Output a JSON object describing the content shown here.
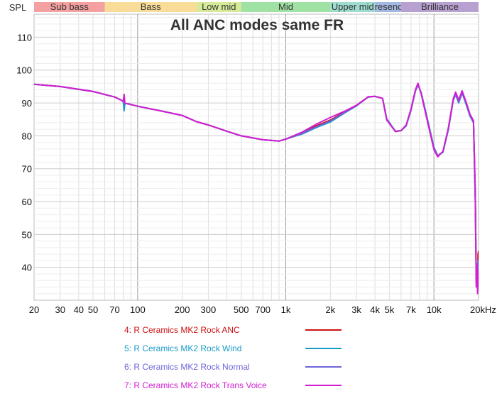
{
  "chart_data": {
    "type": "line",
    "title": "All ANC modes same FR",
    "ylabel": "SPL",
    "xlabel": "",
    "x_scale": "log",
    "xlim": [
      20,
      20000
    ],
    "ylim": [
      30,
      117
    ],
    "grid": true,
    "legend_position": "bottom",
    "x_tick_labels": [
      {
        "value": 20,
        "label": "20"
      },
      {
        "value": 30,
        "label": "30"
      },
      {
        "value": 40,
        "label": "40"
      },
      {
        "value": 50,
        "label": "50"
      },
      {
        "value": 70,
        "label": "70"
      },
      {
        "value": 100,
        "label": "100"
      },
      {
        "value": 200,
        "label": "200"
      },
      {
        "value": 300,
        "label": "300"
      },
      {
        "value": 500,
        "label": "500"
      },
      {
        "value": 700,
        "label": "700"
      },
      {
        "value": 1000,
        "label": "1k"
      },
      {
        "value": 2000,
        "label": "2k"
      },
      {
        "value": 3000,
        "label": "3k"
      },
      {
        "value": 4000,
        "label": "4k"
      },
      {
        "value": 5000,
        "label": "5k"
      },
      {
        "value": 7000,
        "label": "7k"
      },
      {
        "value": 10000,
        "label": "10k"
      },
      {
        "value": 20000,
        "label": "20kHz"
      }
    ],
    "y_tick_labels": [
      {
        "value": 40,
        "label": "40"
      },
      {
        "value": 50,
        "label": "50"
      },
      {
        "value": 60,
        "label": "60"
      },
      {
        "value": 70,
        "label": "70"
      },
      {
        "value": 80,
        "label": "80"
      },
      {
        "value": 90,
        "label": "90"
      },
      {
        "value": 100,
        "label": "100"
      },
      {
        "value": 110,
        "label": "110"
      }
    ],
    "bands": [
      {
        "label": "Sub bass",
        "from": 20,
        "to": 60,
        "color": "#f4a0a0"
      },
      {
        "label": "Bass",
        "from": 60,
        "to": 250,
        "color": "#f8dc98"
      },
      {
        "label": "Low mid",
        "from": 250,
        "to": 500,
        "color": "#d6ea98"
      },
      {
        "label": "Mid",
        "from": 500,
        "to": 2000,
        "color": "#a0e2a4"
      },
      {
        "label": "Upper mid",
        "from": 2000,
        "to": 4000,
        "color": "#9edcd0"
      },
      {
        "label": "Presence",
        "from": 4000,
        "to": 6000,
        "color": "#a4b8e2"
      },
      {
        "label": "Brilliance",
        "from": 6000,
        "to": 20000,
        "color": "#b8a0d0"
      }
    ],
    "x": [
      20,
      30,
      50,
      70,
      78,
      80,
      81,
      82,
      85,
      100,
      150,
      200,
      250,
      300,
      400,
      500,
      700,
      900,
      1000,
      1300,
      1600,
      2000,
      2500,
      3000,
      3600,
      4000,
      4500,
      4800,
      5500,
      6000,
      6500,
      7000,
      7500,
      7800,
      8200,
      9000,
      10000,
      10600,
      11500,
      12500,
      13500,
      14000,
      14700,
      15500,
      16500,
      17500,
      18500,
      19000,
      19300,
      19500,
      19700,
      19850,
      20000
    ],
    "series": [
      {
        "name": "4: R Ceramics MK2 Rock ANC",
        "color": "#cc1111",
        "values": [
          95.7,
          95.0,
          93.5,
          91.8,
          90.8,
          90.4,
          92.2,
          89.8,
          89.8,
          89.0,
          87.4,
          86.2,
          84.3,
          83.3,
          81.4,
          80.0,
          78.8,
          78.4,
          79.0,
          81.0,
          83.0,
          84.8,
          87.3,
          89.3,
          91.8,
          92.0,
          91.4,
          85.0,
          81.3,
          81.6,
          83.2,
          88.0,
          93.8,
          95.6,
          93.0,
          85.0,
          76.0,
          73.8,
          75.2,
          82.0,
          91.0,
          92.8,
          90.4,
          93.4,
          90.0,
          86.5,
          84.5,
          62.0,
          36.0,
          40.0,
          34.0,
          44.0,
          45.0
        ]
      },
      {
        "name": "5: R Ceramics MK2 Rock Wind",
        "color": "#1a9cc8",
        "values": [
          95.7,
          95.0,
          93.5,
          91.8,
          90.8,
          90.4,
          87.6,
          89.8,
          89.8,
          89.0,
          87.4,
          86.2,
          84.3,
          83.3,
          81.4,
          80.0,
          78.8,
          78.4,
          79.0,
          80.6,
          82.5,
          84.2,
          87.0,
          89.1,
          91.8,
          92.0,
          91.4,
          85.2,
          81.4,
          81.6,
          83.0,
          87.8,
          93.6,
          95.5,
          93.2,
          85.5,
          76.5,
          74.0,
          75.0,
          81.8,
          90.8,
          92.5,
          90.0,
          93.0,
          89.5,
          86.0,
          84.0,
          60.0,
          35.0,
          38.0,
          33.0,
          41.0,
          40.0
        ]
      },
      {
        "name": "6: R Ceramics MK2 Rock Normal",
        "color": "#6e66d8",
        "values": [
          95.7,
          95.0,
          93.5,
          91.8,
          90.8,
          90.4,
          91.0,
          89.8,
          89.8,
          89.0,
          87.4,
          86.2,
          84.3,
          83.3,
          81.4,
          80.0,
          78.8,
          78.4,
          79.0,
          80.8,
          82.7,
          84.5,
          87.1,
          89.2,
          91.8,
          92.0,
          91.4,
          85.1,
          81.3,
          81.6,
          83.1,
          87.9,
          93.7,
          95.7,
          93.1,
          85.3,
          76.3,
          74.0,
          75.1,
          81.9,
          90.9,
          92.6,
          90.2,
          93.2,
          89.8,
          86.2,
          84.2,
          61.0,
          35.5,
          39.0,
          33.5,
          42.0,
          42.0
        ]
      },
      {
        "name": "7: R Ceramics MK2 Rock Trans Voice",
        "color": "#d21fd2",
        "values": [
          95.7,
          95.0,
          93.5,
          91.8,
          90.8,
          90.4,
          92.6,
          89.8,
          89.8,
          89.0,
          87.4,
          86.2,
          84.3,
          83.3,
          81.4,
          80.0,
          78.8,
          78.4,
          79.0,
          81.2,
          83.5,
          85.6,
          87.5,
          89.3,
          91.9,
          92.0,
          91.4,
          84.8,
          81.3,
          81.6,
          83.3,
          88.2,
          94.0,
          96.0,
          92.8,
          84.8,
          75.8,
          73.6,
          75.3,
          82.3,
          91.3,
          93.3,
          90.9,
          93.7,
          90.2,
          86.6,
          84.6,
          63.0,
          34.0,
          41.0,
          32.0,
          39.0,
          36.0
        ]
      }
    ]
  }
}
